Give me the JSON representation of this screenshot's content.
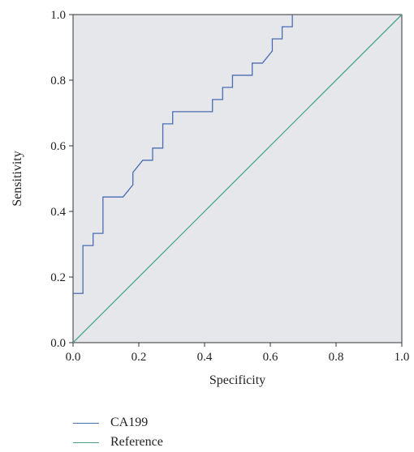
{
  "chart_data": {
    "type": "line",
    "title": "",
    "xlabel": "Specificity",
    "ylabel": "Sensitivity",
    "xlim": [
      0,
      1
    ],
    "ylim": [
      0,
      1
    ],
    "x_ticks": [
      "0.0",
      "0.2",
      "0.4",
      "0.6",
      "0.8",
      "1.0"
    ],
    "y_ticks": [
      "0.0",
      "0.2",
      "0.4",
      "0.6",
      "0.8",
      "1.0"
    ],
    "grid": false,
    "background": "#e6e7ea",
    "legend_position": "bottom-left",
    "series": [
      {
        "name": "CA199",
        "color": "#4a6cb3",
        "points": [
          [
            0.0,
            0.15
          ],
          [
            0.03,
            0.15
          ],
          [
            0.03,
            0.296
          ],
          [
            0.061,
            0.296
          ],
          [
            0.061,
            0.333
          ],
          [
            0.091,
            0.333
          ],
          [
            0.091,
            0.444
          ],
          [
            0.152,
            0.444
          ],
          [
            0.182,
            0.481
          ],
          [
            0.182,
            0.519
          ],
          [
            0.212,
            0.556
          ],
          [
            0.242,
            0.556
          ],
          [
            0.242,
            0.593
          ],
          [
            0.273,
            0.593
          ],
          [
            0.273,
            0.667
          ],
          [
            0.303,
            0.667
          ],
          [
            0.303,
            0.704
          ],
          [
            0.424,
            0.704
          ],
          [
            0.424,
            0.741
          ],
          [
            0.455,
            0.741
          ],
          [
            0.455,
            0.778
          ],
          [
            0.485,
            0.778
          ],
          [
            0.485,
            0.815
          ],
          [
            0.545,
            0.815
          ],
          [
            0.545,
            0.852
          ],
          [
            0.576,
            0.852
          ],
          [
            0.606,
            0.889
          ],
          [
            0.606,
            0.926
          ],
          [
            0.636,
            0.926
          ],
          [
            0.636,
            0.963
          ],
          [
            0.667,
            0.963
          ],
          [
            0.667,
            1.0
          ]
        ]
      },
      {
        "name": "Reference",
        "color": "#4aa588",
        "points": [
          [
            0.0,
            0.0
          ],
          [
            1.0,
            1.0
          ]
        ]
      }
    ]
  }
}
